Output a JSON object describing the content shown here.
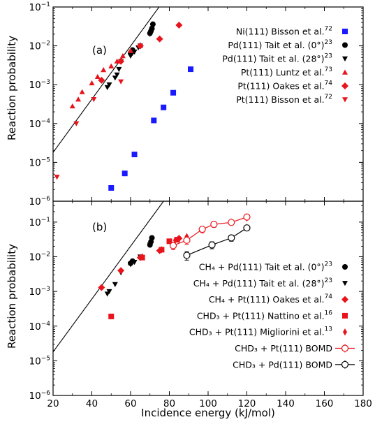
{
  "chart_data": [
    {
      "type": "scatter",
      "panel_label": "(a)",
      "xlabel": "Incidence energy (kJ/mol)",
      "ylabel": "Reaction probability",
      "xlim": [
        20,
        180
      ],
      "ylim": [
        1e-06,
        0.1
      ],
      "yscale": "log",
      "xticks": [
        20,
        40,
        60,
        80,
        100,
        120,
        140,
        160,
        180
      ],
      "yticks": [
        {
          "value": 1e-06,
          "base": "10",
          "exp": "−6"
        },
        {
          "value": 1e-05,
          "base": "10",
          "exp": "−5"
        },
        {
          "value": 0.0001,
          "base": "10",
          "exp": "−4"
        },
        {
          "value": 0.001,
          "base": "10",
          "exp": "−3"
        },
        {
          "value": 0.01,
          "base": "10",
          "exp": "−2"
        },
        {
          "value": 0.1,
          "base": "10",
          "exp": "−1"
        }
      ],
      "legend_position": "upper-right",
      "fit_line": {
        "x": [
          20,
          75
        ],
        "y": [
          1.8e-05,
          0.105
        ]
      },
      "series": [
        {
          "name": "Ni(111) Bisson et al.",
          "ref": "72",
          "marker": "square",
          "color": "#1a1aff",
          "x": [
            50,
            57,
            62,
            72,
            77,
            82,
            91
          ],
          "y": [
            2.2e-06,
            5.2e-06,
            1.6e-05,
            0.00012,
            0.00026,
            0.00062,
            0.0025
          ]
        },
        {
          "name": "Pd(111) Tait et al. (0°)",
          "ref": "23",
          "marker": "circle",
          "color": "#000000",
          "x": [
            60,
            60.5,
            61,
            70,
            70.5,
            71,
            71.5
          ],
          "y": [
            0.0065,
            0.0072,
            0.0078,
            0.021,
            0.024,
            0.028,
            0.036
          ]
        },
        {
          "name": "Pd(111) Tait et al. (28°)",
          "ref": "23",
          "marker": "triangle-down",
          "color": "#000000",
          "x": [
            48,
            49,
            52,
            53,
            54,
            55,
            60,
            61,
            62,
            64,
            65,
            70,
            71
          ],
          "y": [
            0.00085,
            0.001,
            0.0015,
            0.0018,
            0.0025,
            0.004,
            0.0055,
            0.0065,
            0.007,
            0.009,
            0.01,
            0.02,
            0.024
          ]
        },
        {
          "name": "Pt(111) Luntz et al.",
          "ref": "73",
          "marker": "triangle-up",
          "color": "#e8141c",
          "x": [
            30,
            33,
            35,
            40,
            43,
            46,
            50,
            53,
            56,
            60,
            65
          ],
          "y": [
            0.00028,
            0.00042,
            0.00065,
            0.0011,
            0.0016,
            0.0024,
            0.003,
            0.004,
            0.0055,
            0.0075,
            0.01
          ]
        },
        {
          "name": "Pt(111) Oakes et al.",
          "ref": "74",
          "marker": "diamond",
          "color": "#e8141c",
          "x": [
            45,
            55,
            65,
            75,
            85
          ],
          "y": [
            0.0013,
            0.004,
            0.01,
            0.015,
            0.034
          ]
        },
        {
          "name": "Pt(111) Bisson et al.",
          "ref": "72",
          "marker": "triangle-down",
          "color": "#e8141c",
          "x": [
            22,
            32,
            41,
            55
          ],
          "y": [
            4.2e-06,
            0.0001,
            0.00042,
            0.0012
          ]
        }
      ]
    },
    {
      "type": "scatter",
      "panel_label": "(b)",
      "xlabel": "Incidence energy (kJ/mol)",
      "ylabel": "Reaction probability",
      "xlim": [
        20,
        180
      ],
      "ylim": [
        1e-06,
        0.4
      ],
      "yscale": "log",
      "xticks": [
        20,
        40,
        60,
        80,
        100,
        120,
        140,
        160,
        180
      ],
      "xtick_labels": [
        "20",
        "40",
        "60",
        "80",
        "100",
        "120",
        "140",
        "160",
        "180"
      ],
      "yticks": [
        {
          "value": 1e-06,
          "base": "10",
          "exp": "−6"
        },
        {
          "value": 1e-05,
          "base": "10",
          "exp": "−5"
        },
        {
          "value": 0.0001,
          "base": "10",
          "exp": "−4"
        },
        {
          "value": 0.001,
          "base": "10",
          "exp": "−3"
        },
        {
          "value": 0.01,
          "base": "10",
          "exp": "−2"
        },
        {
          "value": 0.1,
          "base": "10",
          "exp": "−1"
        }
      ],
      "legend_position": "lower-right",
      "fit_line": {
        "x": [
          20,
          77
        ],
        "y": [
          1.8e-05,
          0.4
        ]
      },
      "series": [
        {
          "name": "CH₄ + Pd(111) Tait et al. (0°)",
          "ref": "23",
          "marker": "circle",
          "color": "#000000",
          "x": [
            60,
            61,
            70,
            70.5,
            71
          ],
          "y": [
            0.0065,
            0.0075,
            0.022,
            0.027,
            0.035
          ]
        },
        {
          "name": "CH₄ + Pd(111) Tait et al. (28°)",
          "ref": "23",
          "marker": "triangle-down",
          "color": "#000000",
          "x": [
            48,
            49,
            52,
            55,
            60,
            62,
            65,
            70
          ],
          "y": [
            0.00085,
            0.001,
            0.0016,
            0.0035,
            0.006,
            0.007,
            0.01,
            0.022
          ]
        },
        {
          "name": "CH₄ + Pt(111) Oakes et al.",
          "ref": "74",
          "marker": "diamond",
          "color": "#e8141c",
          "x": [
            45,
            55,
            65,
            75,
            85
          ],
          "y": [
            0.0013,
            0.004,
            0.0095,
            0.015,
            0.034
          ]
        },
        {
          "name": "CHD₃ + Pt(111) Nattino et al.",
          "ref": "16",
          "marker": "square",
          "color": "#e8141c",
          "x": [
            50,
            66,
            76,
            80,
            84
          ],
          "y": [
            0.00019,
            0.0095,
            0.016,
            0.028,
            0.031
          ]
        },
        {
          "name": "CHD₃ + Pt(111) Migliorini et al.",
          "ref": "13",
          "marker": "thin-diamond",
          "color": "#e8141c",
          "x": [
            66,
            76,
            83,
            89,
            97,
            103,
            112,
            120
          ],
          "y": [
            0.01,
            0.016,
            0.03,
            0.038,
            0.058,
            0.085,
            0.1,
            0.13
          ]
        },
        {
          "name": "CHD₃ + Pt(111) BOMD",
          "marker": "open-circle-line",
          "color": "#e8141c",
          "x": [
            82,
            89,
            97,
            103,
            112,
            120
          ],
          "y": [
            0.021,
            0.03,
            0.062,
            0.086,
            0.098,
            0.14
          ],
          "err": [
            0.005,
            0.007,
            0.012,
            0.015,
            0.016,
            0.02
          ]
        },
        {
          "name": "CHD₃ + Pd(111) BOMD",
          "marker": "open-circle-line",
          "color": "#000000",
          "x": [
            89,
            102,
            112,
            120
          ],
          "y": [
            0.011,
            0.022,
            0.035,
            0.068
          ],
          "err": [
            0.003,
            0.005,
            0.007,
            0.012
          ]
        }
      ]
    }
  ]
}
